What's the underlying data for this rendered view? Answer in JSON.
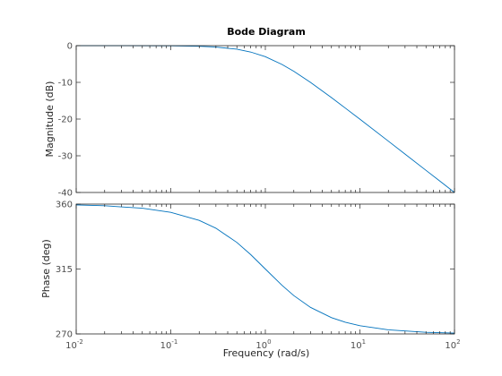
{
  "title": "Bode Diagram",
  "chart_data": [
    {
      "type": "line",
      "panel": "magnitude",
      "title": "Bode Diagram",
      "xlabel": "",
      "ylabel": "Magnitude (dB)",
      "xscale": "log",
      "xlim": [
        0.01,
        100
      ],
      "ylim": [
        -40,
        0
      ],
      "yticks": [
        0,
        -10,
        -20,
        -30,
        -40
      ],
      "grid": false,
      "line_color": "#0072bd",
      "x": [
        0.01,
        0.0316,
        0.1,
        0.2,
        0.3,
        0.5,
        0.7,
        1,
        1.5,
        2,
        3,
        5,
        7,
        10,
        20,
        30,
        50,
        70,
        100
      ],
      "y": [
        0,
        0,
        -0.04,
        -0.17,
        -0.37,
        -0.97,
        -1.74,
        -3.01,
        -5.12,
        -6.99,
        -10.0,
        -14.15,
        -17.0,
        -20.04,
        -26.02,
        -29.54,
        -33.98,
        -36.9,
        -40.0
      ]
    },
    {
      "type": "line",
      "panel": "phase",
      "xlabel": "Frequency (rad/s)",
      "ylabel": "Phase (deg)",
      "xscale": "log",
      "xlim": [
        0.01,
        100
      ],
      "ylim": [
        270,
        360
      ],
      "yticks": [
        360,
        315,
        270
      ],
      "xticks": [
        "10^-2",
        "10^-1",
        "10^0",
        "10^1",
        "10^2"
      ],
      "grid": false,
      "line_color": "#0072bd",
      "x": [
        0.01,
        0.02,
        0.05,
        0.1,
        0.2,
        0.3,
        0.5,
        0.7,
        1,
        1.5,
        2,
        3,
        5,
        7,
        10,
        20,
        50,
        100
      ],
      "y": [
        359.43,
        358.85,
        357.14,
        354.29,
        348.69,
        343.3,
        333.43,
        325.0,
        315.0,
        303.69,
        296.57,
        288.43,
        281.31,
        278.13,
        275.71,
        272.86,
        271.15,
        270.57
      ]
    }
  ]
}
